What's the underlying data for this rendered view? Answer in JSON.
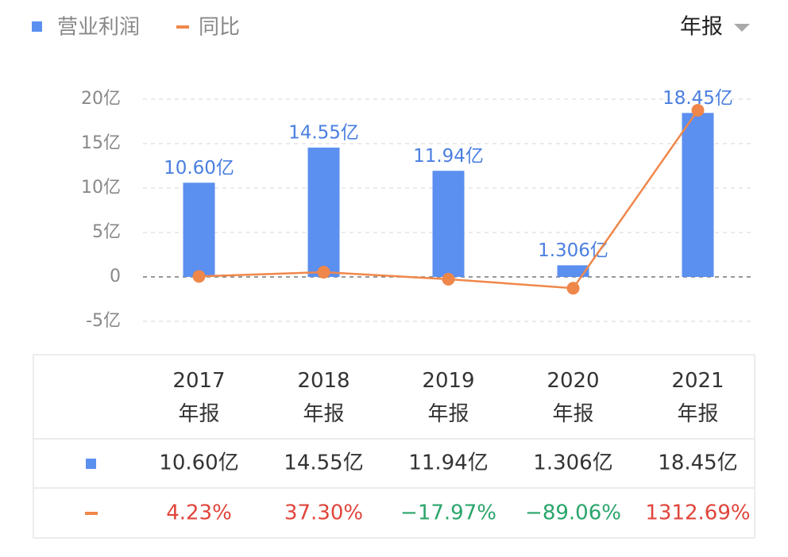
{
  "chart_data": {
    "type": "bar",
    "selector": "年报",
    "categories": [
      "2017\n年报",
      "2018\n年报",
      "2019\n年报",
      "2020\n年报",
      "2021\n年报"
    ],
    "ylim": [
      -5,
      20
    ],
    "yticks": [
      {
        "value": -5,
        "label": "-5亿"
      },
      0,
      {
        "value": 5,
        "label": "5亿"
      },
      {
        "value": 10,
        "label": "10亿"
      },
      {
        "value": 15,
        "label": "15亿"
      },
      {
        "value": 20,
        "label": "20亿"
      }
    ],
    "y2lim": [
      -350,
      1400
    ],
    "grid": true,
    "legend": "top-left",
    "positive_color": "#e0453b",
    "negative_color": "#2aa56b",
    "series": [
      {
        "name": "营业利润",
        "type": "bar",
        "color": "#5b8ff0",
        "values": [
          10.6,
          14.55,
          11.94,
          1.306,
          18.45
        ],
        "value_labels": [
          "10.60亿",
          "14.55亿",
          "11.94亿",
          "1.306亿",
          "18.45亿"
        ]
      },
      {
        "name": "同比",
        "type": "line",
        "axis": "y2",
        "color": "#f0874a",
        "values": [
          4.23,
          37.3,
          -17.97,
          -89.06,
          1312.69
        ],
        "value_labels": [
          "4.23%",
          "37.30%",
          "−17.97%",
          "−89.06%",
          "1312.69%"
        ]
      }
    ]
  }
}
